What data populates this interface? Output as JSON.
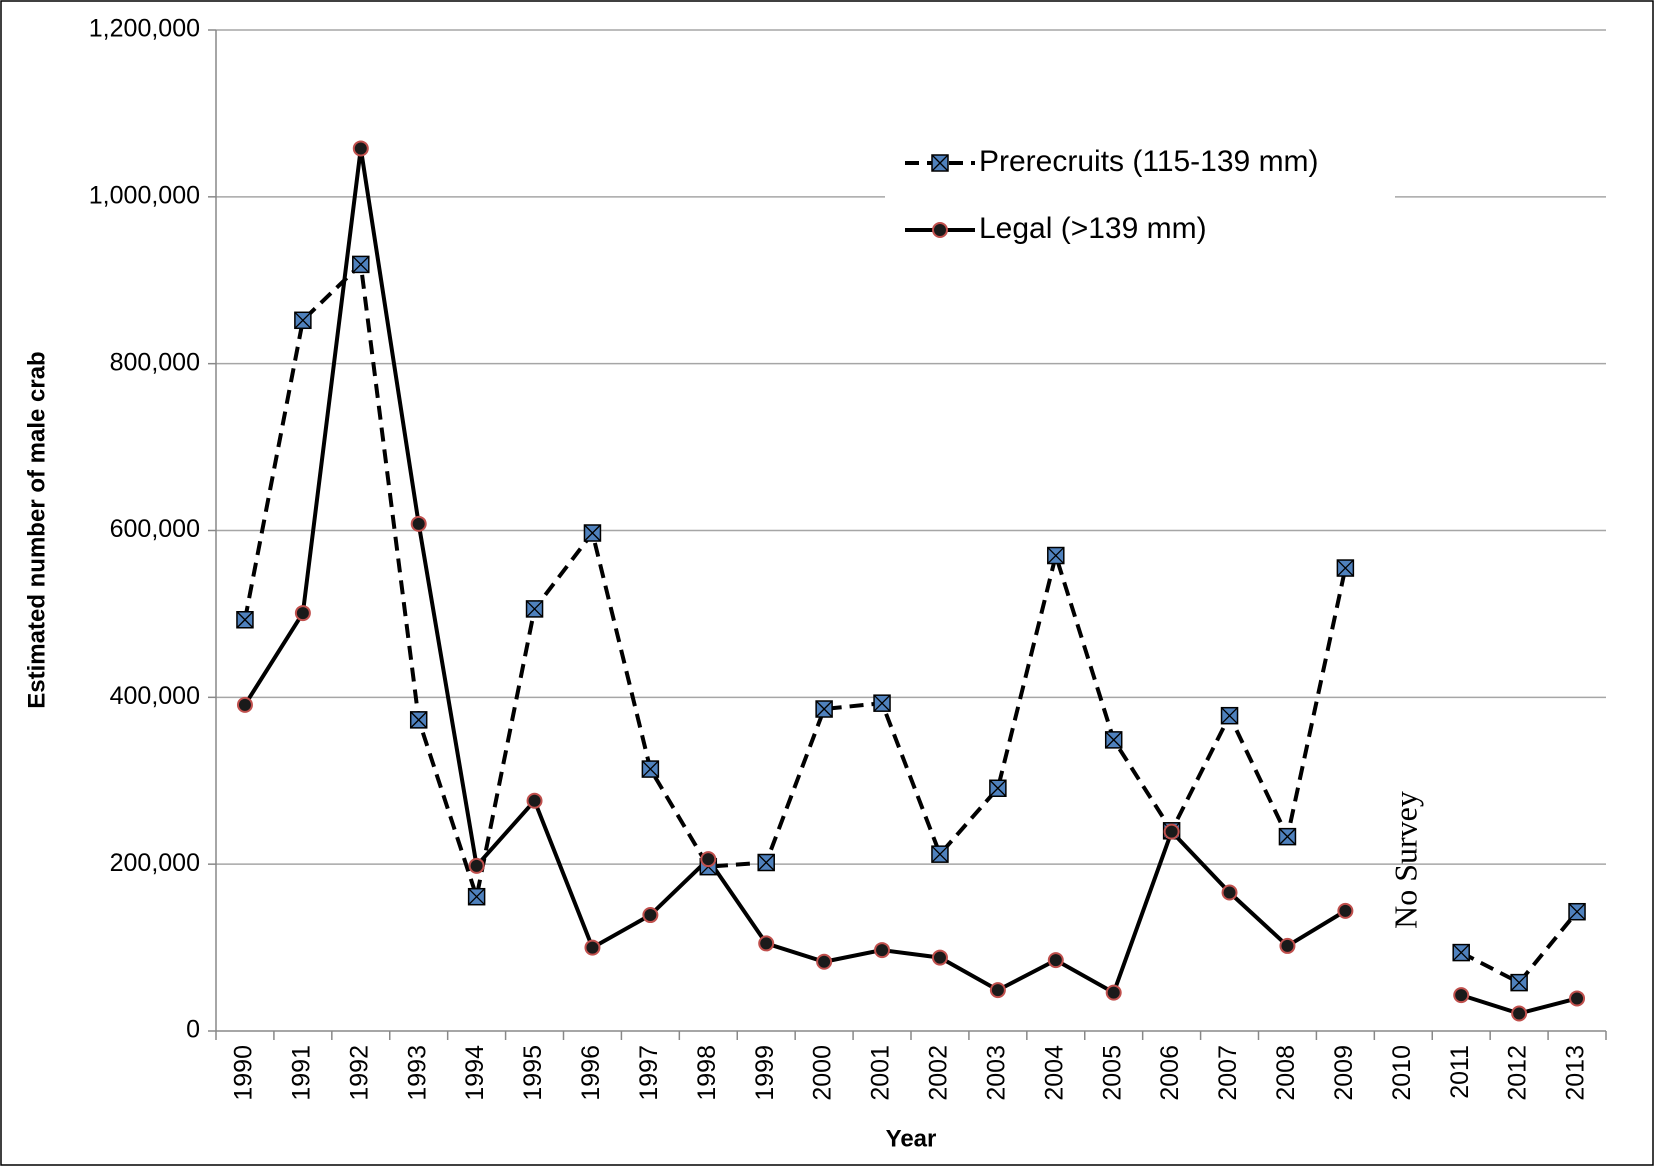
{
  "chart_data": {
    "type": "line",
    "ylabel": "Estimated number of male crab",
    "xlabel": "Year",
    "annotation": "No Survey",
    "categories": [
      "1990",
      "1991",
      "1992",
      "1993",
      "1994",
      "1995",
      "1996",
      "1997",
      "1998",
      "1999",
      "2000",
      "2001",
      "2002",
      "2003",
      "2004",
      "2005",
      "2006",
      "2007",
      "2008",
      "2009",
      "2010",
      "2011",
      "2012",
      "2013"
    ],
    "series": [
      {
        "name": "Prerecruits (115-139 mm)",
        "color": "#000000",
        "dash": "dashed",
        "marker": "square-x",
        "marker_color": "#4f81bd",
        "values": [
          493000,
          852000,
          919000,
          373000,
          161000,
          506000,
          597000,
          314000,
          197000,
          202000,
          386000,
          393000,
          212000,
          291000,
          570000,
          349000,
          240000,
          378000,
          233000,
          555000,
          null,
          94000,
          58000,
          143000
        ]
      },
      {
        "name": "Legal (>139 mm)",
        "color": "#000000",
        "dash": "solid",
        "marker": "circle",
        "marker_color": "#c0504d",
        "values": [
          391000,
          501000,
          1058000,
          608000,
          198000,
          276000,
          100000,
          139000,
          206000,
          105000,
          83000,
          97000,
          88000,
          49000,
          85000,
          46000,
          239000,
          166000,
          102000,
          144000,
          null,
          43000,
          21000,
          39000
        ]
      }
    ],
    "ylim": [
      0,
      1200000
    ],
    "yticks": [
      0,
      {
        "value": 200000,
        "label": "200,000"
      },
      {
        "value": 400000,
        "label": "400,000"
      },
      {
        "value": 600000,
        "label": "600,000"
      },
      {
        "value": 800000,
        "label": "800,000"
      },
      {
        "value": 1000000,
        "label": "1,000,000"
      },
      {
        "value": 1200000,
        "label": "1,200,000"
      }
    ],
    "grid": true,
    "legend": "upper right"
  }
}
